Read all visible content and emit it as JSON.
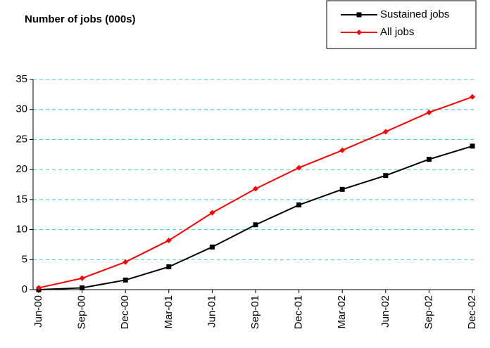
{
  "chart_data": {
    "type": "line",
    "title": "Number of jobs (000s)",
    "categories": [
      "Jun-00",
      "Sep-00",
      "Dec-00",
      "Mar-01",
      "Jun-01",
      "Sep-01",
      "Dec-01",
      "Mar-02",
      "Jun-02",
      "Sep-02",
      "Dec-02"
    ],
    "series": [
      {
        "name": "Sustained jobs",
        "color": "#000000",
        "marker": "square",
        "values": [
          0,
          0.3,
          1.6,
          3.8,
          7.1,
          10.8,
          14.1,
          16.7,
          19.0,
          21.7,
          23.9
        ]
      },
      {
        "name": "All jobs",
        "color": "#ff0000",
        "marker": "diamond",
        "values": [
          0.3,
          1.9,
          4.6,
          8.2,
          12.8,
          16.8,
          20.3,
          23.2,
          26.3,
          29.5,
          32.1
        ]
      }
    ],
    "ylim": [
      0,
      35
    ],
    "yticks": [
      0,
      5,
      10,
      15,
      20,
      25,
      30,
      35
    ],
    "grid": true,
    "legend": "top-right"
  }
}
